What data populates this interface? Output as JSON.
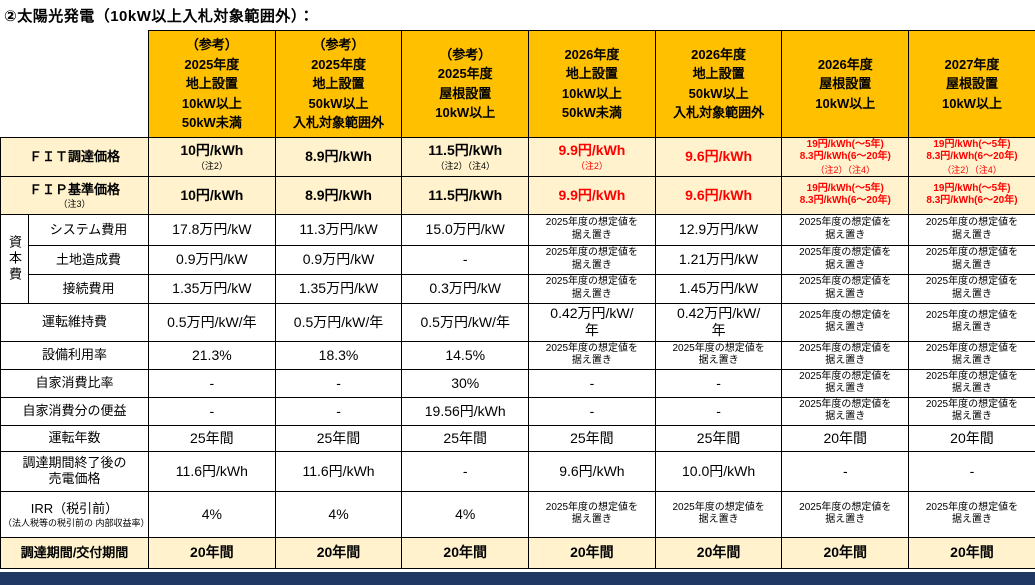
{
  "title": "②太陽光発電（10kW以上入札対象範囲外）：",
  "colors": {
    "header_bg": "#FFC000",
    "highlight_bg": "#FFF2CC",
    "price_red": "#FF0000",
    "footer_bar": "#1F3864",
    "border": "#000000"
  },
  "columns": [
    {
      "label": "（参考）\n2025年度\n地上設置\n10kW以上\n50kW未満"
    },
    {
      "label": "（参考）\n2025年度\n地上設置\n50kW以上\n入札対象範囲外"
    },
    {
      "label": "（参考）\n2025年度\n屋根設置\n10kW以上"
    },
    {
      "label": "2026年度\n地上設置\n10kW以上\n50kW未満"
    },
    {
      "label": "2026年度\n地上設置\n50kW以上\n入札対象範囲外"
    },
    {
      "label": "2026年度\n屋根設置\n10kW以上"
    },
    {
      "label": "2027年度\n屋根設置\n10kW以上"
    }
  ],
  "rows": [
    {
      "id": "fit-price",
      "label": "ＦＩＴ調達価格",
      "highlight": true,
      "cells": [
        {
          "value": "10円/kWh",
          "note": "（注2）"
        },
        {
          "value": "8.9円/kWh"
        },
        {
          "value": "11.5円/kWh",
          "note": "（注2）（注4）"
        },
        {
          "value": "9.9円/kWh",
          "note": "（注2）",
          "red": true
        },
        {
          "value": "9.6円/kWh",
          "red": true
        },
        {
          "value": "19円/kWh(～5年)\n8.3円/kWh(6～20年)",
          "note": "（注2）（注4）",
          "red": true,
          "small": true
        },
        {
          "value": "19円/kWh(～5年)\n8.3円/kWh(6～20年)",
          "note": "（注2）（注4）",
          "red": true,
          "small": true
        }
      ]
    },
    {
      "id": "fip-price",
      "label": "ＦＩＰ基準価格",
      "label_note": "（注3）",
      "highlight": true,
      "cells": [
        {
          "value": "10円/kWh"
        },
        {
          "value": "8.9円/kWh"
        },
        {
          "value": "11.5円/kWh"
        },
        {
          "value": "9.9円/kWh",
          "red": true
        },
        {
          "value": "9.6円/kWh",
          "red": true
        },
        {
          "value": "19円/kWh(～5年)\n8.3円/kWh(6～20年)",
          "red": true,
          "small": true
        },
        {
          "value": "19円/kWh(～5年)\n8.3円/kWh(6～20年)",
          "red": true,
          "small": true
        }
      ]
    },
    {
      "id": "system-cost",
      "label": "システム費用",
      "group": "資本費",
      "group_start": true,
      "group_span": 3,
      "in_group": true,
      "cells": [
        {
          "value": "17.8万円/kW"
        },
        {
          "value": "11.3万円/kW"
        },
        {
          "value": "15.0万円/kW"
        },
        {
          "value": "2025年度の想定値を\n据え置き",
          "small": true
        },
        {
          "value": "12.9万円/kW"
        },
        {
          "value": "2025年度の想定値を\n据え置き",
          "small": true
        },
        {
          "value": "2025年度の想定値を\n据え置き",
          "small": true
        }
      ]
    },
    {
      "id": "land-cost",
      "label": "土地造成費",
      "in_group": true,
      "cells": [
        {
          "value": "0.9万円/kW"
        },
        {
          "value": "0.9万円/kW"
        },
        {
          "value": "-"
        },
        {
          "value": "2025年度の想定値を\n据え置き",
          "small": true
        },
        {
          "value": "1.21万円/kW"
        },
        {
          "value": "2025年度の想定値を\n据え置き",
          "small": true
        },
        {
          "value": "2025年度の想定値を\n据え置き",
          "small": true
        }
      ]
    },
    {
      "id": "connection-cost",
      "label": "接続費用",
      "in_group": true,
      "cells": [
        {
          "value": "1.35万円/kW"
        },
        {
          "value": "1.35万円/kW"
        },
        {
          "value": "0.3万円/kW"
        },
        {
          "value": "2025年度の想定値を\n据え置き",
          "small": true
        },
        {
          "value": "1.45万円/kW"
        },
        {
          "value": "2025年度の想定値を\n据え置き",
          "small": true
        },
        {
          "value": "2025年度の想定値を\n据え置き",
          "small": true
        }
      ]
    },
    {
      "id": "om-cost",
      "label": "運転維持費",
      "cells": [
        {
          "value": "0.5万円/kW/年"
        },
        {
          "value": "0.5万円/kW/年"
        },
        {
          "value": "0.5万円/kW/年"
        },
        {
          "value": "0.42万円/kW/\n年"
        },
        {
          "value": "0.42万円/kW/\n年"
        },
        {
          "value": "2025年度の想定値を\n据え置き",
          "small": true
        },
        {
          "value": "2025年度の想定値を\n据え置き",
          "small": true
        }
      ]
    },
    {
      "id": "capacity-factor",
      "label": "設備利用率",
      "cells": [
        {
          "value": "21.3%"
        },
        {
          "value": "18.3%"
        },
        {
          "value": "14.5%"
        },
        {
          "value": "2025年度の想定値を\n据え置き",
          "small": true
        },
        {
          "value": "2025年度の想定値を\n据え置き",
          "small": true
        },
        {
          "value": "2025年度の想定値を\n据え置き",
          "small": true
        },
        {
          "value": "2025年度の想定値を\n据え置き",
          "small": true
        }
      ]
    },
    {
      "id": "self-consumption-ratio",
      "label": "自家消費比率",
      "cells": [
        {
          "value": "-"
        },
        {
          "value": "-"
        },
        {
          "value": "30%"
        },
        {
          "value": "-"
        },
        {
          "value": "-"
        },
        {
          "value": "2025年度の想定値を\n据え置き",
          "small": true
        },
        {
          "value": "2025年度の想定値を\n据え置き",
          "small": true
        }
      ]
    },
    {
      "id": "self-consumption-benefit",
      "label": "自家消費分の便益",
      "cells": [
        {
          "value": "-"
        },
        {
          "value": "-"
        },
        {
          "value": "19.56円/kWh"
        },
        {
          "value": "-"
        },
        {
          "value": "-"
        },
        {
          "value": "2025年度の想定値を\n据え置き",
          "small": true
        },
        {
          "value": "2025年度の想定値を\n据え置き",
          "small": true
        }
      ]
    },
    {
      "id": "operation-years",
      "label": "運転年数",
      "cells": [
        {
          "value": "25年間"
        },
        {
          "value": "25年間"
        },
        {
          "value": "25年間"
        },
        {
          "value": "25年間"
        },
        {
          "value": "25年間"
        },
        {
          "value": "20年間"
        },
        {
          "value": "20年間"
        }
      ]
    },
    {
      "id": "post-period-price",
      "label": "調達期間終了後の\n売電価格",
      "cells": [
        {
          "value": "11.6円/kWh"
        },
        {
          "value": "11.6円/kWh"
        },
        {
          "value": "-"
        },
        {
          "value": "9.6円/kWh"
        },
        {
          "value": "10.0円/kWh"
        },
        {
          "value": "-"
        },
        {
          "value": "-"
        }
      ]
    },
    {
      "id": "irr",
      "label": "IRR（税引前）",
      "label_note": "（法人税等の税引前の\n内部収益率）",
      "cells": [
        {
          "value": "4%"
        },
        {
          "value": "4%"
        },
        {
          "value": "4%"
        },
        {
          "value": "2025年度の想定値を\n据え置き",
          "small": true
        },
        {
          "value": "2025年度の想定値を\n据え置き",
          "small": true
        },
        {
          "value": "2025年度の想定値を\n据え置き",
          "small": true
        },
        {
          "value": "2025年度の想定値を\n据え置き",
          "small": true
        }
      ]
    },
    {
      "id": "period",
      "label": "調達期間/交付期間",
      "highlight": true,
      "cells": [
        {
          "value": "20年間"
        },
        {
          "value": "20年間"
        },
        {
          "value": "20年間"
        },
        {
          "value": "20年間"
        },
        {
          "value": "20年間"
        },
        {
          "value": "20年間"
        },
        {
          "value": "20年間"
        }
      ]
    }
  ]
}
